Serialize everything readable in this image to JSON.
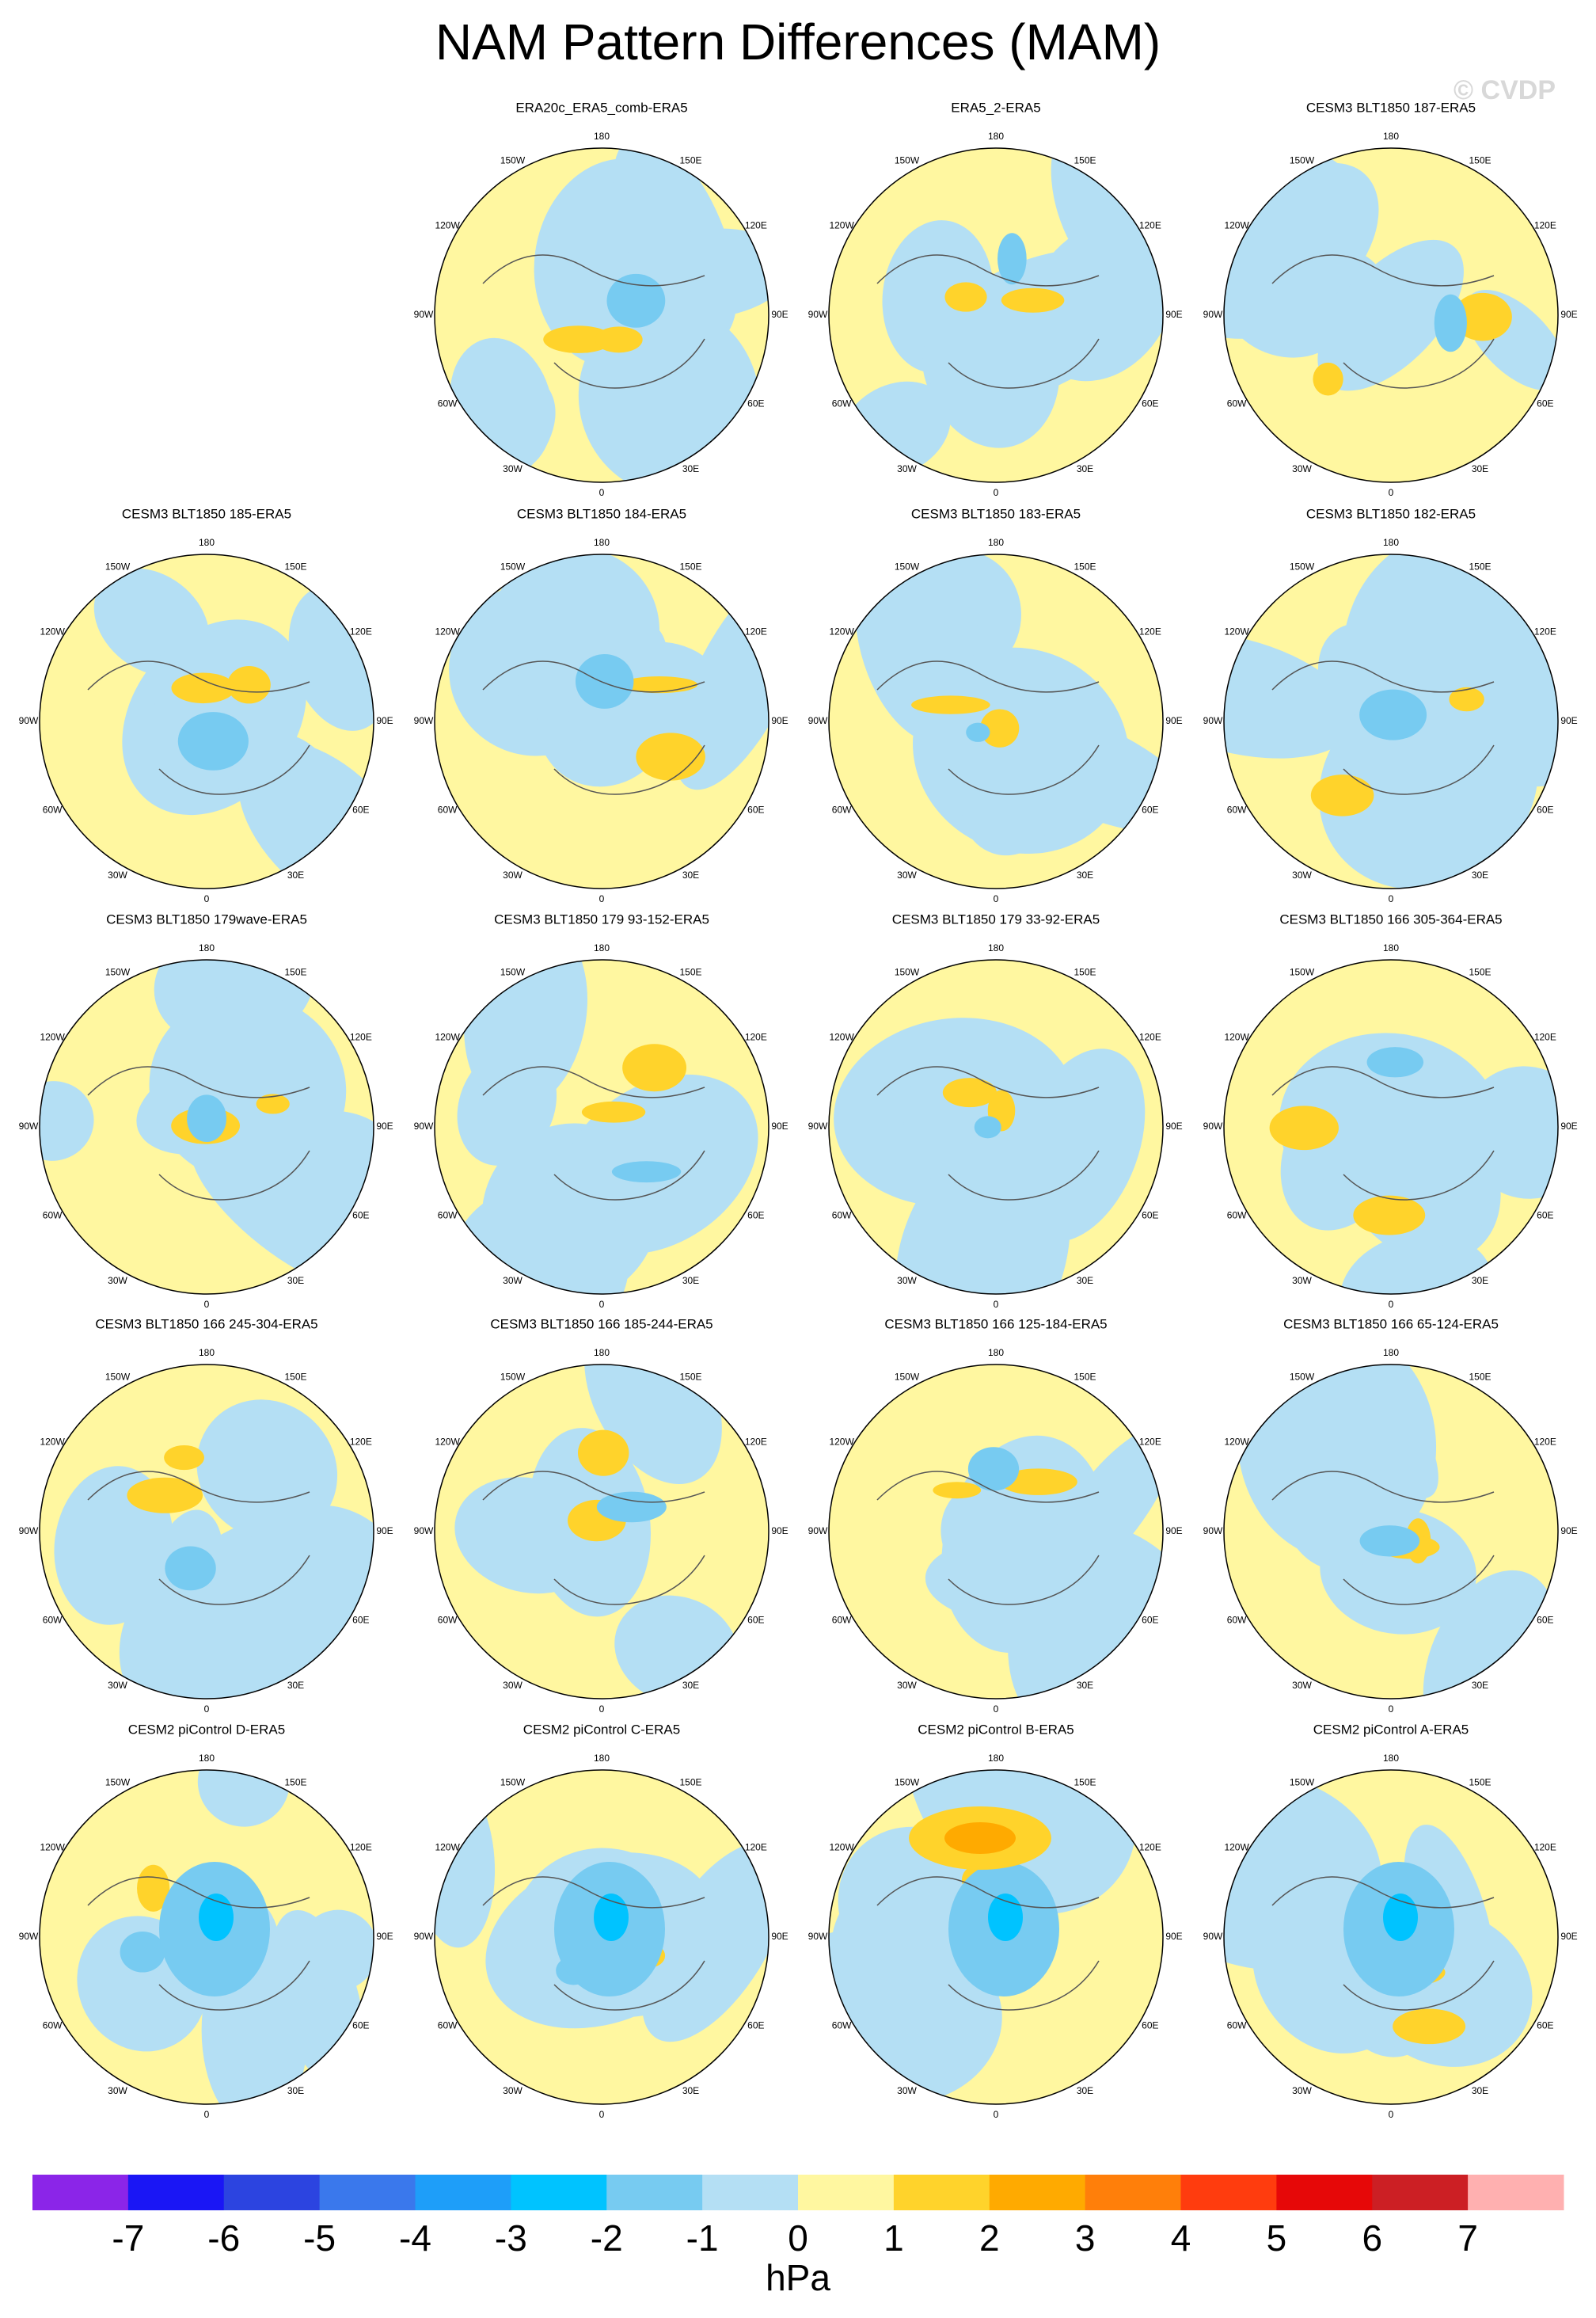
{
  "title": "NAM Pattern Differences (MAM)",
  "watermark": "© CVDP",
  "panels": [
    {
      "title": "ERA20c_ERA5_comb-ERA5"
    },
    {
      "title": "ERA5_2-ERA5"
    },
    {
      "title": "CESM3 BLT1850 187-ERA5"
    },
    {
      "title": "CESM3 BLT1850 185-ERA5"
    },
    {
      "title": "CESM3 BLT1850 184-ERA5"
    },
    {
      "title": "CESM3 BLT1850 183-ERA5"
    },
    {
      "title": "CESM3 BLT1850 182-ERA5"
    },
    {
      "title": "CESM3 BLT1850 179wave-ERA5"
    },
    {
      "title": "CESM3 BLT1850 179 93-152-ERA5"
    },
    {
      "title": "CESM3 BLT1850 179 33-92-ERA5"
    },
    {
      "title": "CESM3 BLT1850 166 305-364-ERA5"
    },
    {
      "title": "CESM3 BLT1850 166 245-304-ERA5"
    },
    {
      "title": "CESM3 BLT1850 166 185-244-ERA5"
    },
    {
      "title": "CESM3 BLT1850 166 125-184-ERA5"
    },
    {
      "title": "CESM3 BLT1850 166 65-124-ERA5"
    },
    {
      "title": "CESM2 piControl D-ERA5"
    },
    {
      "title": "CESM2 piControl C-ERA5"
    },
    {
      "title": "CESM2 piControl B-ERA5"
    },
    {
      "title": "CESM2 piControl A-ERA5"
    }
  ],
  "longitude_labels": [
    "180",
    "150E",
    "120E",
    "90E",
    "60E",
    "30E",
    "0",
    "30W",
    "60W",
    "90W",
    "120W",
    "150W"
  ],
  "colorbar": {
    "colors": [
      "#8b25e8",
      "#1a16f5",
      "#2c44e0",
      "#3a78ec",
      "#1e9ef9",
      "#00c3ff",
      "#77cbf1",
      "#b4dff4",
      "#fff7a0",
      "#ffd32b",
      "#ffaa00",
      "#ff7f0a",
      "#ff3c0e",
      "#e60808",
      "#cc1f24",
      "#ffb0b0"
    ],
    "ticks": [
      -7,
      -6,
      -5,
      -4,
      -3,
      -2,
      -1,
      0,
      1,
      2,
      3,
      4,
      5,
      6,
      7
    ],
    "label": "hPa"
  }
}
